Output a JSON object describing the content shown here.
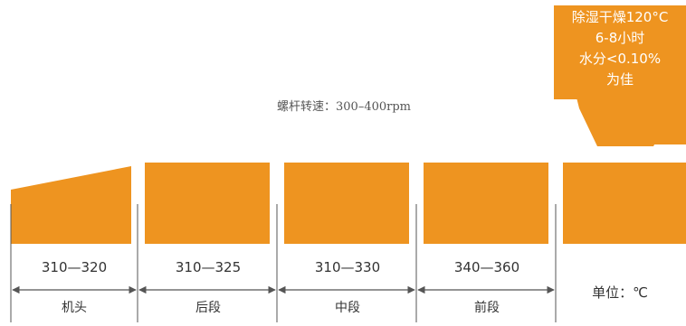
{
  "colors": {
    "accent": "#ee9420",
    "text": "#333333",
    "line": "#555555"
  },
  "hopper": {
    "lines": [
      "除湿干燥120°C",
      "6-8小时",
      "水分<0.10%",
      "为佳"
    ]
  },
  "screw_speed": "螺杆转速：300–400rpm",
  "zones": [
    {
      "name": "机头",
      "temp": "310—320"
    },
    {
      "name": "后段",
      "temp": "310—325"
    },
    {
      "name": "中段",
      "temp": "310—330"
    },
    {
      "name": "前段",
      "temp": "340—360"
    }
  ],
  "unit": "单位：℃"
}
